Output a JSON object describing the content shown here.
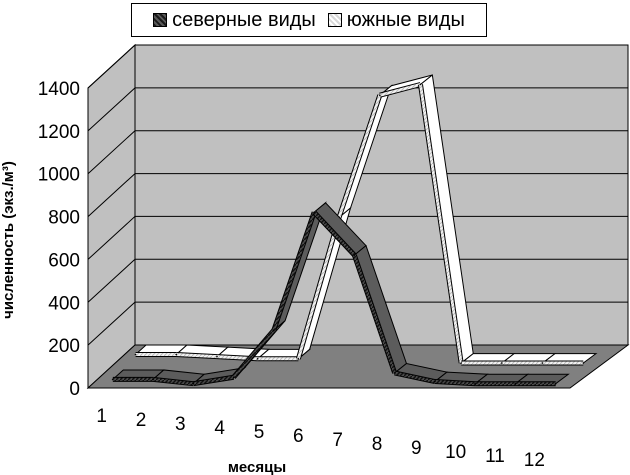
{
  "chart_data": {
    "type": "line",
    "style": "3d-ribbon",
    "categories": [
      "1",
      "2",
      "3",
      "4",
      "5",
      "6",
      "7",
      "8",
      "9",
      "10",
      "11",
      "12"
    ],
    "series": [
      {
        "name": "северные виды",
        "color": "#2b2b2b",
        "values": [
          20,
          20,
          0,
          30,
          250,
          800,
          600,
          50,
          10,
          0,
          0,
          0
        ]
      },
      {
        "name": "южные виды",
        "color": "#d9d9d9",
        "values": [
          40,
          40,
          30,
          20,
          20,
          680,
          1250,
          1300,
          0,
          0,
          0,
          0
        ]
      }
    ],
    "xlabel": "месяцы",
    "ylabel": "численность (экз./м³)",
    "ylim": [
      0,
      1400
    ],
    "yticks": [
      "0",
      "200",
      "400",
      "600",
      "800",
      "1000",
      "1200",
      "1400"
    ],
    "grid": true,
    "legend_position": "top"
  }
}
